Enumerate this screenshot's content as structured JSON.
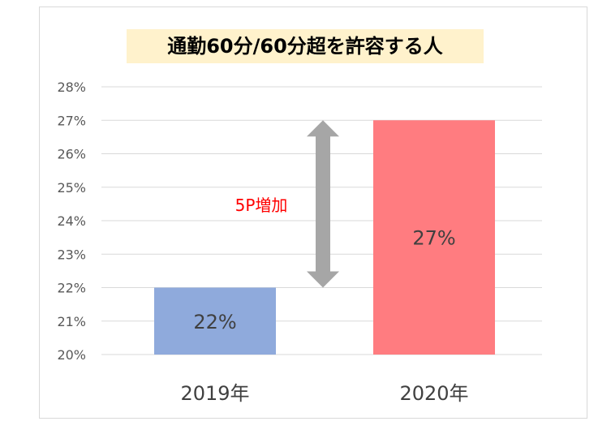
{
  "chart_data": {
    "type": "bar",
    "title": "通勤60分/60分超を許容する人",
    "categories": [
      "2019年",
      "2020年"
    ],
    "values": [
      22,
      27
    ],
    "data_labels": [
      "22%",
      "27%"
    ],
    "bar_colors": [
      "#8faadc",
      "#ff7c80"
    ],
    "ylim": [
      20,
      28
    ],
    "yticks": [
      "20%",
      "21%",
      "22%",
      "23%",
      "24%",
      "25%",
      "26%",
      "27%",
      "28%"
    ],
    "ytick_values": [
      20,
      21,
      22,
      23,
      24,
      25,
      26,
      27,
      28
    ],
    "grid": true,
    "legend": "none",
    "annotation": {
      "text": "5P増加",
      "color": "#ff0000",
      "arrow": "double-headed",
      "arrow_color": "#a6a6a6",
      "from_value": 22,
      "to_value": 27
    }
  }
}
